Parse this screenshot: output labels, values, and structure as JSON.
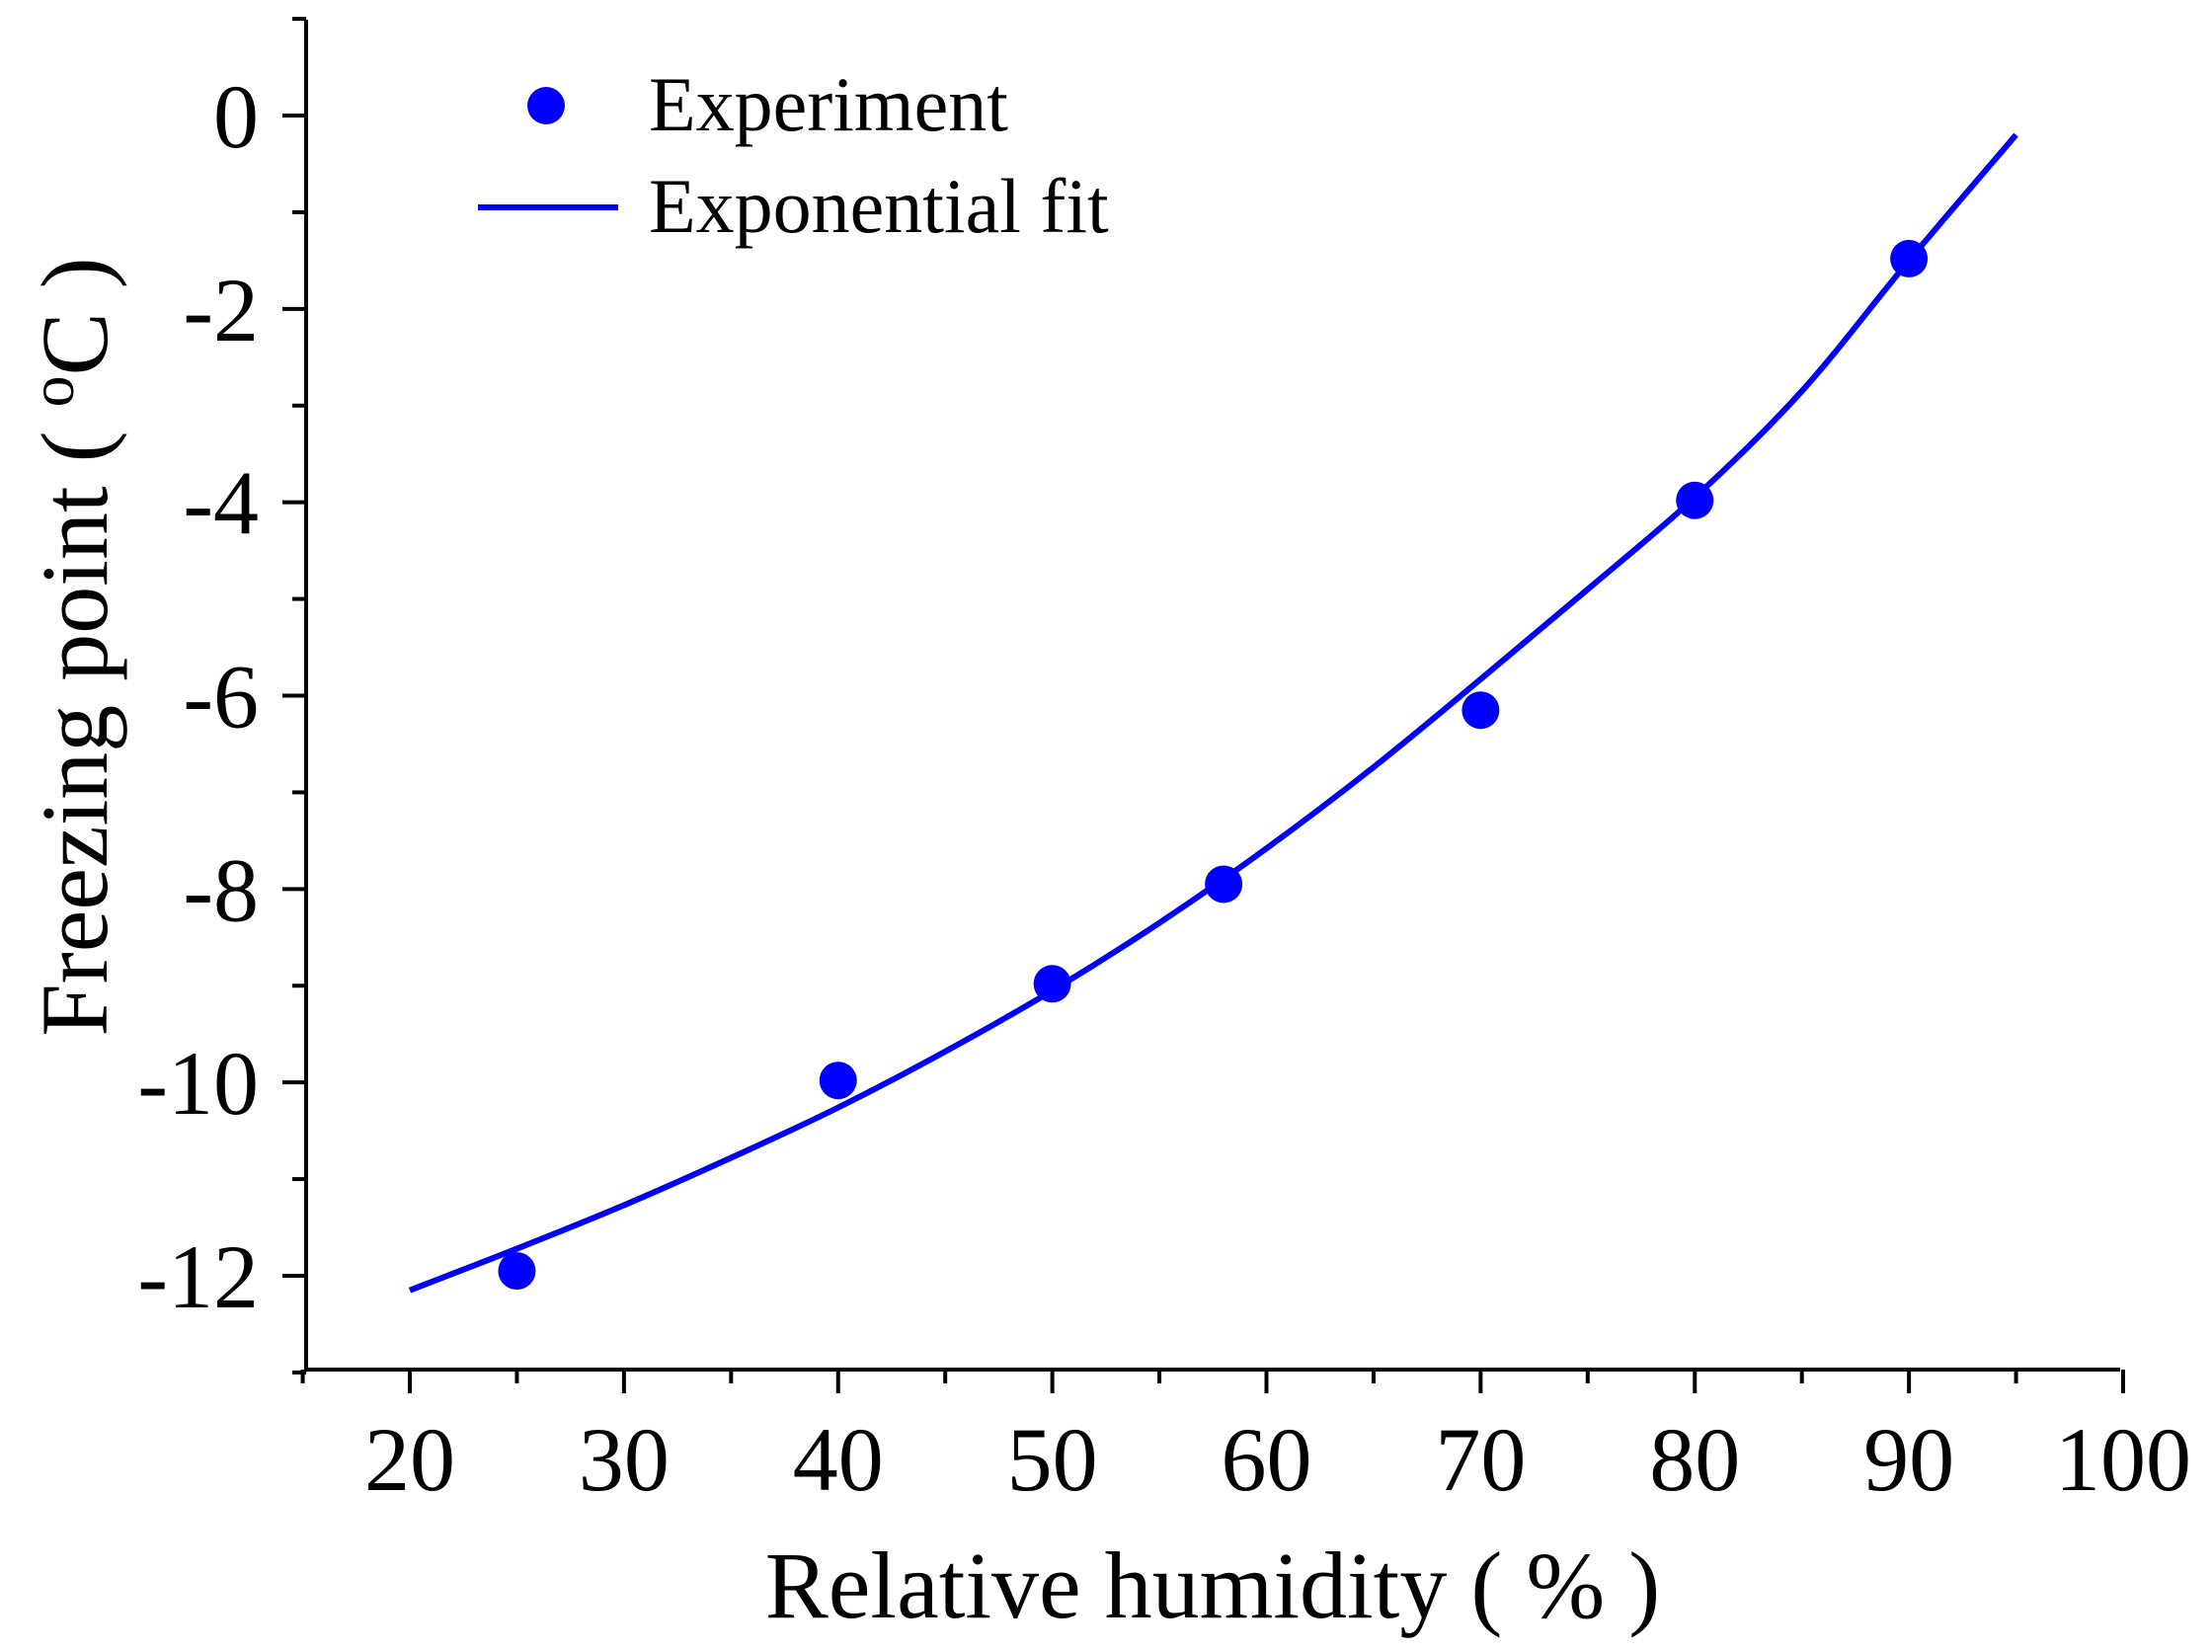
{
  "chart_data": {
    "type": "scatter",
    "title": "",
    "xlabel": "Relative humidity ( % )",
    "ylabel_main": "Freezing point ( ",
    "ylabel_sup": "o",
    "ylabel_tail": "C )",
    "xlim": [
      15,
      100
    ],
    "ylim": [
      -13,
      1
    ],
    "x_ticks": [
      20,
      30,
      40,
      50,
      60,
      70,
      80,
      90,
      100
    ],
    "x_tick_labels": [
      "20",
      "30",
      "40",
      "50",
      "60",
      "70",
      "80",
      "90",
      "100"
    ],
    "x_minor_ticks": [
      15,
      25,
      35,
      45,
      55,
      65,
      75,
      85,
      95
    ],
    "y_ticks": [
      0,
      -2,
      -4,
      -6,
      -8,
      -10,
      -12
    ],
    "y_tick_labels": [
      "0",
      "-2",
      "-4",
      "-6",
      "-8",
      "-10",
      "-12"
    ],
    "y_minor_ticks": [
      1,
      -1,
      -3,
      -5,
      -7,
      -9,
      -11,
      -13
    ],
    "color": "#0000ff",
    "series": [
      {
        "name": "Experiment",
        "kind": "scatter",
        "x": [
          25,
          40,
          50,
          58,
          70,
          80,
          90
        ],
        "y": [
          -11.95,
          -9.98,
          -8.98,
          -7.95,
          -6.15,
          -3.98,
          -1.48
        ]
      },
      {
        "name": "Exponential fit",
        "kind": "line",
        "x": [
          20,
          25,
          30,
          35,
          40,
          45,
          50,
          55,
          60,
          65,
          70,
          75,
          80,
          85,
          90,
          95
        ],
        "y": [
          -12.15,
          -11.72,
          -11.27,
          -10.78,
          -10.26,
          -9.68,
          -9.05,
          -8.35,
          -7.58,
          -6.74,
          -5.83,
          -4.9,
          -3.95,
          -2.85,
          -1.5,
          -0.2
        ]
      }
    ],
    "legend": [
      "Experiment",
      "Exponential fit"
    ],
    "legend_position": "top-left"
  }
}
